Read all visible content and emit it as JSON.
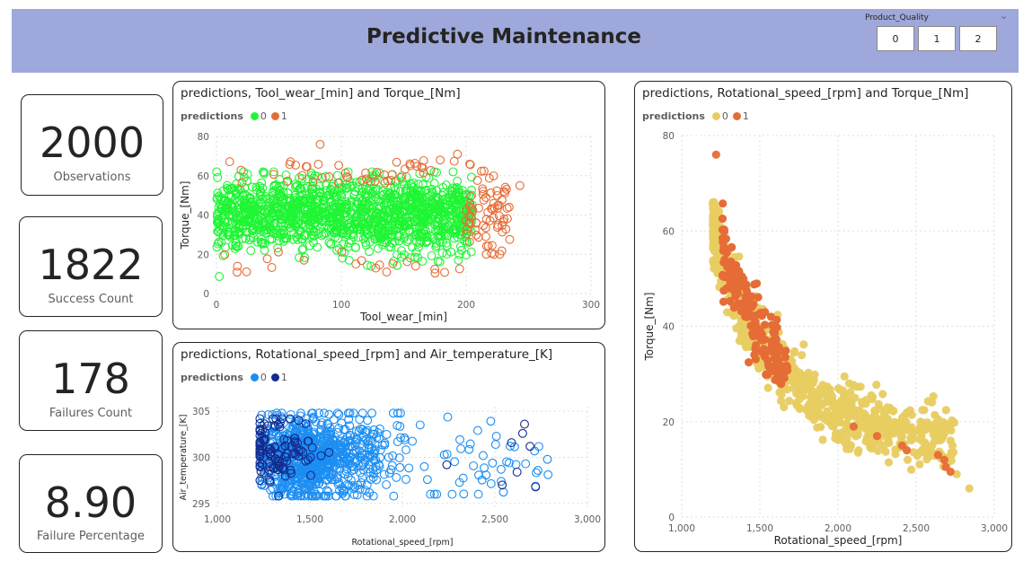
{
  "header": {
    "title": "Predictive Maintenance",
    "slicer": {
      "label": "Product_Quality",
      "options": [
        "0",
        "1",
        "2"
      ]
    }
  },
  "cards": [
    {
      "value": "2000",
      "label": "Observations"
    },
    {
      "value": "1822",
      "label": "Success Count"
    },
    {
      "value": "178",
      "label": "Failures Count"
    },
    {
      "value": "8.90",
      "label": "Failure Percentage"
    }
  ],
  "colors": {
    "background": "#ffffff",
    "header": "#9fa8da",
    "chart1_class0": "#1ff534",
    "chart1_class1": "#e66c37",
    "chart2_class0": "#1c8ef2",
    "chart2_class1": "#142b8f",
    "chart3_class0": "#e8cc61",
    "chart3_class1": "#e66c37"
  },
  "chart_data": [
    {
      "type": "scatter",
      "title": "predictions, Tool_wear_[min] and Torque_[Nm]",
      "legend_title": "predictions",
      "series": [
        {
          "name": "0",
          "color": "#1ff534",
          "summary": {
            "x_range": [
              0,
              205
            ],
            "y_range": [
              6,
              62
            ],
            "y_center": 40,
            "count_approx": 1822
          }
        },
        {
          "name": "1",
          "color": "#e66c37",
          "summary": {
            "x_range": [
              5,
              245
            ],
            "y_range": [
              10,
              76
            ],
            "count_approx": 178
          }
        }
      ],
      "xlabel": "Tool_wear_[min]",
      "ylabel": "Torque_[Nm]",
      "xlim": [
        0,
        300
      ],
      "ylim": [
        0,
        80
      ],
      "x_ticks": [
        "0",
        "100",
        "200",
        "300"
      ],
      "y_ticks": [
        "0",
        "20",
        "40",
        "60",
        "80"
      ],
      "marker": "hollow-circle",
      "grid": true,
      "legend_position": "top-left"
    },
    {
      "type": "scatter",
      "title": "predictions, Rotational_speed_[rpm] and Air_temperature_[K]",
      "legend_title": "predictions",
      "series": [
        {
          "name": "0",
          "color": "#1c8ef2",
          "summary": {
            "x_range": [
              1230,
              2820
            ],
            "y_range": [
              295.8,
              304.8
            ],
            "dense_x_range": [
              1300,
              1750
            ]
          }
        },
        {
          "name": "1",
          "color": "#142b8f",
          "summary": {
            "x_range": [
              1230,
              2700
            ],
            "y_range": [
              295.8,
              304.2
            ],
            "dense_x_range": [
              1250,
              1450
            ]
          }
        }
      ],
      "xlabel": "Rotational_speed_[rpm]",
      "ylabel": "Air_temperature_[K]",
      "xlim": [
        1000,
        3000
      ],
      "ylim": [
        294.5,
        305.5
      ],
      "x_ticks": [
        "1,000",
        "1,500",
        "2,000",
        "2,500",
        "3,000"
      ],
      "y_ticks": [
        "295",
        "300",
        "305"
      ],
      "marker": "hollow-circle",
      "grid": true,
      "legend_position": "top-left"
    },
    {
      "type": "scatter",
      "title": "predictions, Rotational_speed_[rpm] and Torque_[Nm]",
      "legend_title": "predictions",
      "series": [
        {
          "name": "0",
          "color": "#e8cc61",
          "summary": {
            "x_range": [
              1180,
              2840
            ],
            "y_range": [
              5.5,
              66
            ],
            "shape": "decreasing-curve"
          }
        },
        {
          "name": "1",
          "color": "#e66c37",
          "points": [
            [
              1220,
              76
            ],
            [
              2640,
              13
            ],
            [
              2680,
              12
            ],
            [
              2720,
              9.5
            ],
            [
              2690,
              10.5
            ],
            [
              2250,
              17
            ],
            [
              2440,
              14
            ],
            [
              2410,
              15
            ],
            [
              2100,
              19
            ]
          ]
        }
      ],
      "xlabel": "Rotational_speed_[rpm]",
      "ylabel": "Torque_[Nm]",
      "xlim": [
        1000,
        3000
      ],
      "ylim": [
        0,
        80
      ],
      "x_ticks": [
        "1,000",
        "1,500",
        "2,000",
        "2,500",
        "3,000"
      ],
      "y_ticks": [
        "0",
        "20",
        "40",
        "60",
        "80"
      ],
      "marker": "filled-circle",
      "grid": true,
      "legend_position": "top-left"
    }
  ]
}
